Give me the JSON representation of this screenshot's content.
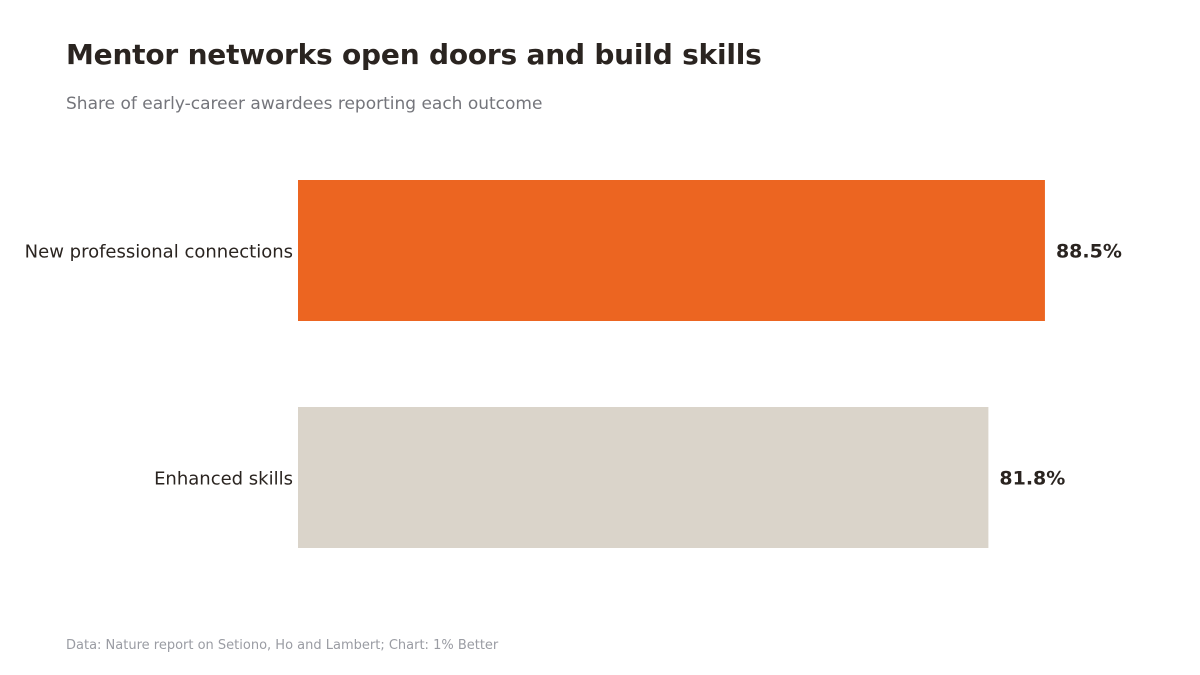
{
  "header": {
    "title": "Mentor networks open doors and build skills",
    "subtitle": "Share of early-career awardees reporting each outcome"
  },
  "footer": {
    "source": "Data: Nature report on Setiono, Ho and Lambert; Chart: 1% Better"
  },
  "chart_data": {
    "type": "bar",
    "orientation": "horizontal",
    "categories": [
      "New professional connections",
      "Enhanced skills"
    ],
    "values": [
      88.5,
      81.8
    ],
    "value_labels": [
      "88.5%",
      "81.8%"
    ],
    "colors": [
      "#ec6521",
      "#dad4ca"
    ],
    "title": "Mentor networks open doors and build skills",
    "subtitle": "Share of early-career awardees reporting each outcome",
    "xlabel": "",
    "ylabel": "",
    "xlim": [
      0,
      100
    ],
    "grid": false,
    "legend": "none"
  }
}
